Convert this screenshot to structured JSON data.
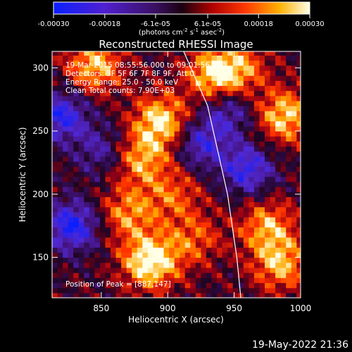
{
  "colorbar": {
    "tick_labels": [
      "-0.00030",
      "-0.00018",
      "-6.1e-05",
      "6.1e-05",
      "0.00018",
      "0.00030"
    ],
    "tick_values": [
      -0.0003,
      -0.00018,
      -6.1e-05,
      6.1e-05,
      0.00018,
      0.0003
    ],
    "range": [
      -0.0003,
      0.0003
    ],
    "unit_label": "(photons cm",
    "unit_sup1": "-2",
    "unit_mid": " s",
    "unit_sup2": "-1",
    "unit_end": " asec",
    "unit_sup3": "-2",
    "unit_close": ")"
  },
  "chart_data": {
    "type": "heatmap",
    "title": "Reconstructed RHESSI Image",
    "xlabel": "Heliocentric X (arcsec)",
    "ylabel": "Heliocentric Y (arcsec)",
    "xlim": [
      813,
      1000
    ],
    "ylim": [
      118,
      313
    ],
    "x_ticks": [
      850,
      900,
      950,
      1000
    ],
    "y_ticks": [
      150,
      200,
      250,
      300
    ],
    "colormap": "rhessi-blue-purple-red-yellow-white",
    "annotations": [
      "19-Mar-2015 08:55:56.000 to 09:01:56.000",
      "Detectors: 3F 5F 6F 7F 8F 9F, Att 0",
      "Energy Range: 25.0 - 50.0 keV",
      "Clean    Total counts: 7.90E+03"
    ],
    "peak_label": "Position of Peak = [887,147]",
    "peak": [
      887,
      147
    ],
    "hot_regions": [
      {
        "x": 887,
        "y": 147,
        "level": 1.0
      },
      {
        "x": 895,
        "y": 258,
        "level": 0.85
      },
      {
        "x": 845,
        "y": 302,
        "level": 0.75
      },
      {
        "x": 935,
        "y": 295,
        "level": 0.8
      },
      {
        "x": 988,
        "y": 262,
        "level": 0.8
      },
      {
        "x": 880,
        "y": 228,
        "level": 0.65
      },
      {
        "x": 870,
        "y": 185,
        "level": 0.6
      },
      {
        "x": 975,
        "y": 175,
        "level": 0.65
      },
      {
        "x": 985,
        "y": 145,
        "level": 0.7
      },
      {
        "x": 955,
        "y": 300,
        "level": 0.5
      },
      {
        "x": 920,
        "y": 165,
        "level": 0.45
      },
      {
        "x": 905,
        "y": 200,
        "level": 0.45
      }
    ],
    "cold_regions": [
      {
        "x": 828,
        "y": 175,
        "level": 1.0
      },
      {
        "x": 820,
        "y": 262,
        "level": 0.9
      },
      {
        "x": 960,
        "y": 220,
        "level": 0.85
      },
      {
        "x": 925,
        "y": 240,
        "level": 0.7
      },
      {
        "x": 945,
        "y": 265,
        "level": 0.6
      },
      {
        "x": 850,
        "y": 235,
        "level": 0.5
      }
    ],
    "limb_line": [
      [
        912,
        313
      ],
      [
        930,
        270
      ],
      [
        945,
        200
      ],
      [
        952,
        150
      ],
      [
        955,
        118
      ]
    ]
  },
  "footer": {
    "timestamp": "19-May-2022 21:36"
  }
}
